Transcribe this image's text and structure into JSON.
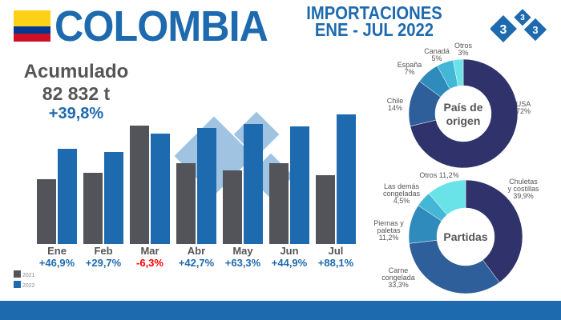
{
  "header": {
    "title": "COLOMBIA",
    "subtitle_line1": "IMPORTACIONES",
    "subtitle_line2": "ENE - JUL 2022",
    "logo_text": "333"
  },
  "summary": {
    "label": "Acumulado",
    "value": "82 832 t",
    "change": "+39,8%"
  },
  "colors": {
    "y2021": "#525459",
    "y2022": "#1e6aae",
    "negative": "#ff0000",
    "accent": "#1e6aae"
  },
  "chart_data": [
    {
      "type": "bar",
      "categories": [
        "Ene",
        "Feb",
        "Mar",
        "Abr",
        "May",
        "Jun",
        "Jul"
      ],
      "series": [
        {
          "name": "2021",
          "values": [
            81,
            89,
            148,
            101,
            92,
            101,
            86
          ]
        },
        {
          "name": "2022",
          "values": [
            119,
            115,
            138,
            145,
            150,
            147,
            162
          ]
        }
      ],
      "change_labels": [
        "+46,9%",
        "+29,7%",
        "-6,3%",
        "+42,7%",
        "+63,3%",
        "+44,9%",
        "+88,1%"
      ],
      "legend_placement": "bottom-left",
      "grid": false
    },
    {
      "type": "pie",
      "title": "País de origen",
      "labels": [
        "USA",
        "Chile",
        "España",
        "Canadá",
        "Otros"
      ],
      "values": [
        72,
        14,
        7,
        5,
        3
      ],
      "value_labels": [
        "72%",
        "14%",
        "7%",
        "5%",
        "3%"
      ],
      "colors": [
        "#30336b",
        "#2e5f9a",
        "#2e8bbb",
        "#44b6d6",
        "#69e3e8"
      ]
    },
    {
      "type": "pie",
      "title": "Partidas",
      "labels": [
        "Chuletas y costillas",
        "Carne congelada",
        "Piernas y paletas",
        "Las demás congeladas",
        "Otros"
      ],
      "values": [
        39.9,
        33.3,
        11.2,
        4.5,
        11.2
      ],
      "value_labels": [
        "39,9%",
        "33,3%",
        "11,2%",
        "4,5%",
        "11,2%"
      ],
      "colors": [
        "#30336b",
        "#2e5f9a",
        "#2e8bbb",
        "#44b6d6",
        "#69e3e8"
      ]
    }
  ]
}
